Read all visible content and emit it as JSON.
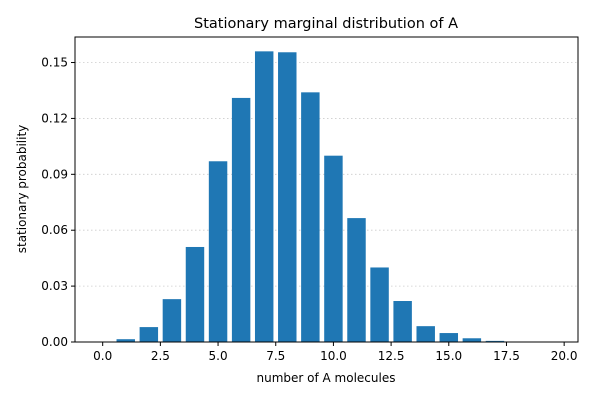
{
  "chart_data": {
    "type": "bar",
    "title": "Stationary marginal distribution of A",
    "xlabel": "number of A molecules",
    "ylabel": "stationary probability",
    "xlim": [
      -1.2,
      20.6
    ],
    "ylim": [
      0,
      0.1637
    ],
    "xticks": [
      0.0,
      2.5,
      5.0,
      7.5,
      10.0,
      12.5,
      15.0,
      17.5,
      20.0
    ],
    "xtick_labels": [
      "0.0",
      "2.5",
      "5.0",
      "7.5",
      "10.0",
      "12.5",
      "15.0",
      "17.5",
      "20.0"
    ],
    "yticks": [
      0.0,
      0.03,
      0.06,
      0.09,
      0.12,
      0.15
    ],
    "ytick_labels": [
      "0.00",
      "0.03",
      "0.06",
      "0.09",
      "0.12",
      "0.15"
    ],
    "grid": "y-dotted",
    "bar_color": "#1f77b4",
    "bar_width": 0.8,
    "x": [
      0,
      1,
      2,
      3,
      4,
      5,
      6,
      7,
      8,
      9,
      10,
      11,
      12,
      13,
      14,
      15,
      16,
      17,
      18,
      19
    ],
    "values": [
      0.0001,
      0.0015,
      0.008,
      0.023,
      0.051,
      0.097,
      0.131,
      0.156,
      0.1555,
      0.134,
      0.1,
      0.0665,
      0.04,
      0.022,
      0.0085,
      0.0048,
      0.002,
      0.0006,
      0.0002,
      5e-05
    ]
  }
}
